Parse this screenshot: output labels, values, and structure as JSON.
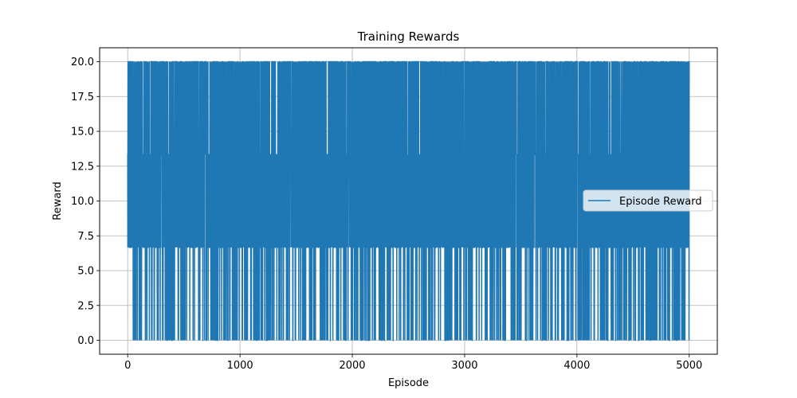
{
  "chart_data": {
    "type": "line",
    "title": "Training Rewards",
    "xlabel": "Episode",
    "ylabel": "Reward",
    "xlim": [
      -250,
      5250
    ],
    "ylim": [
      -1.0,
      21.0
    ],
    "xticks": [
      0,
      1000,
      2000,
      3000,
      4000,
      5000
    ],
    "xtick_labels": [
      "0",
      "1000",
      "2000",
      "3000",
      "4000",
      "5000"
    ],
    "yticks": [
      0.0,
      2.5,
      5.0,
      7.5,
      10.0,
      12.5,
      15.0,
      17.5,
      20.0
    ],
    "ytick_labels": [
      "0.0",
      "2.5",
      "5.0",
      "7.5",
      "10.0",
      "12.5",
      "15.0",
      "17.5",
      "20.0"
    ],
    "grid": true,
    "legend_position": "center right",
    "series": [
      {
        "name": "Episode Reward",
        "color": "#1f77b4",
        "x_range": [
          0,
          5000
        ],
        "levels": [
          0.0,
          6.67,
          13.33,
          20.0
        ],
        "level_probabilities": [
          0.1,
          0.3,
          0.3,
          0.3
        ]
      }
    ]
  }
}
